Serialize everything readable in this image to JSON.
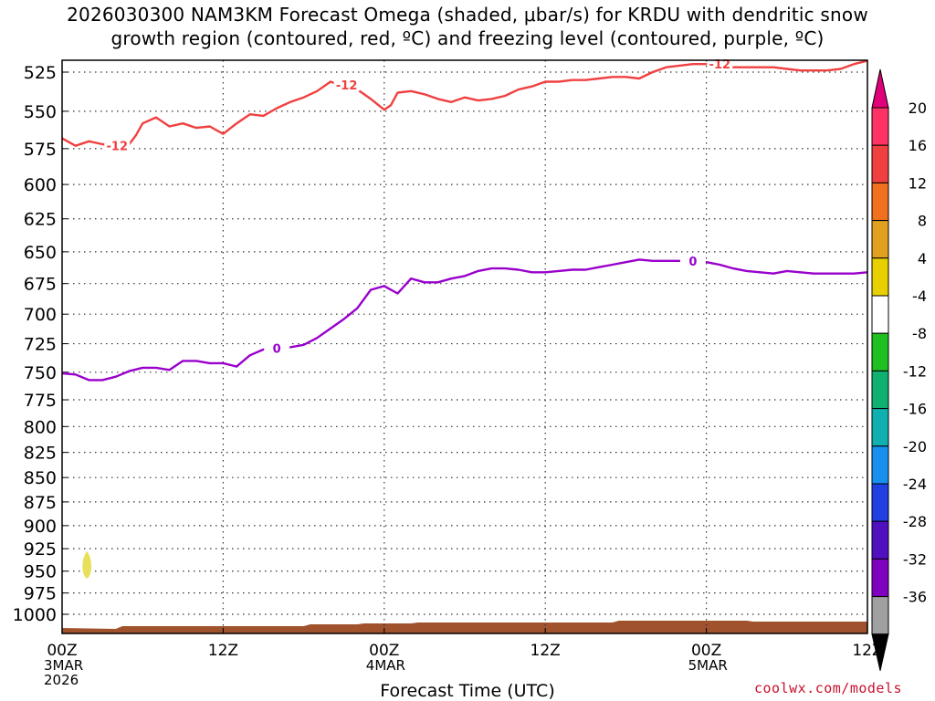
{
  "title_line1": "2026030300 NAM3KM Forecast Omega (shaded, μbar/s) for KRDU with dendritic snow",
  "title_line2": "growth region (contoured, red, ºC) and freezing level (contoured, purple, ºC)",
  "credit": "coolwx.com/models",
  "chart_data": {
    "type": "line",
    "xlabel": "Forecast Time (UTC)",
    "ylabel": "",
    "x_ticks": [
      {
        "hour": 0,
        "lines": [
          "00Z",
          "3MAR",
          "2026"
        ]
      },
      {
        "hour": 12,
        "lines": [
          "12Z"
        ]
      },
      {
        "hour": 24,
        "lines": [
          "00Z",
          "4MAR"
        ]
      },
      {
        "hour": 36,
        "lines": [
          "12Z"
        ]
      },
      {
        "hour": 48,
        "lines": [
          "00Z",
          "5MAR"
        ]
      },
      {
        "hour": 60,
        "lines": [
          "12Z"
        ]
      }
    ],
    "xlim": [
      0,
      60
    ],
    "y_ticks": [
      525,
      550,
      575,
      600,
      625,
      650,
      675,
      700,
      725,
      750,
      775,
      800,
      825,
      850,
      875,
      900,
      925,
      950,
      975,
      1000
    ],
    "ylim_hPa": [
      1000,
      510
    ],
    "y_scale": "log-pressure",
    "grid": true,
    "series": [
      {
        "name": "dendritic snow growth region",
        "contour_label": "-12",
        "color": "#f04040",
        "x": [
          0,
          1,
          2,
          3,
          4,
          5,
          5.5,
          6,
          7,
          8,
          9,
          10,
          11,
          12,
          13,
          14,
          15,
          16,
          17,
          18,
          19,
          20,
          21,
          22,
          23,
          24,
          24.5,
          25,
          26,
          27,
          28,
          29,
          30,
          31,
          32,
          33,
          34,
          35,
          36,
          37,
          38,
          39,
          40,
          41,
          42,
          43,
          44,
          45,
          46,
          47,
          48,
          49,
          50,
          51,
          52,
          53,
          54,
          55,
          56,
          57,
          58,
          59,
          60
        ],
        "y": [
          568,
          573,
          570,
          572,
          573,
          572,
          566,
          558,
          554,
          560,
          558,
          561,
          560,
          565,
          558,
          552,
          553,
          548,
          544,
          541,
          537,
          531,
          534,
          536,
          542,
          549,
          546,
          538,
          537,
          539,
          542,
          544,
          541,
          543,
          542,
          540,
          536,
          534,
          531,
          531,
          530,
          530,
          529,
          528,
          528,
          529,
          525,
          522,
          521,
          520,
          520,
          521,
          522,
          522,
          522,
          522,
          523,
          524,
          524,
          524,
          523,
          520,
          518
        ]
      },
      {
        "name": "freezing level",
        "contour_label": "0",
        "color": "#9900cc",
        "x": [
          0,
          1,
          2,
          3,
          4,
          5,
          6,
          7,
          8,
          9,
          10,
          11,
          12,
          13,
          14,
          15,
          16,
          17,
          18,
          19,
          20,
          21,
          22,
          23,
          24,
          25,
          26,
          27,
          28,
          29,
          30,
          31,
          32,
          33,
          34,
          35,
          36,
          37,
          38,
          39,
          40,
          41,
          42,
          43,
          44,
          45,
          46,
          47,
          48,
          49,
          50,
          51,
          52,
          53,
          54,
          55,
          56,
          57,
          58,
          59,
          60
        ],
        "y": [
          751,
          752,
          757,
          757,
          754,
          749,
          746,
          746,
          748,
          740,
          740,
          742,
          742,
          745,
          735,
          730,
          730,
          728,
          726,
          720,
          712,
          704,
          695,
          680,
          677,
          683,
          671,
          674,
          674,
          671,
          669,
          665,
          663,
          663,
          664,
          666,
          666,
          665,
          664,
          664,
          662,
          660,
          658,
          656,
          657,
          657,
          657,
          657,
          658,
          660,
          663,
          665,
          666,
          667,
          665,
          666,
          667,
          667,
          667,
          667,
          666
        ]
      }
    ],
    "omega_shading": [
      {
        "value_range": "4 to 8",
        "color": "#e6e05a",
        "center_hour": 1.85,
        "center_hPa": 945
      }
    ],
    "terrain_fill_color": "#a0522d",
    "colorbar": {
      "labels": [
        "20",
        "16",
        "12",
        "8",
        "4",
        "-4",
        "-8",
        "-12",
        "-16",
        "-20",
        "-24",
        "-28",
        "-32",
        "-36"
      ],
      "colors": [
        "#ff3366",
        "#f04040",
        "#f07020",
        "#e0a020",
        "#e8d000",
        "#ffffff",
        "#20c020",
        "#10b070",
        "#10b0b0",
        "#1890f0",
        "#2040e0",
        "#5010c0",
        "#8000c0",
        "#a0a0a0"
      ]
    }
  }
}
